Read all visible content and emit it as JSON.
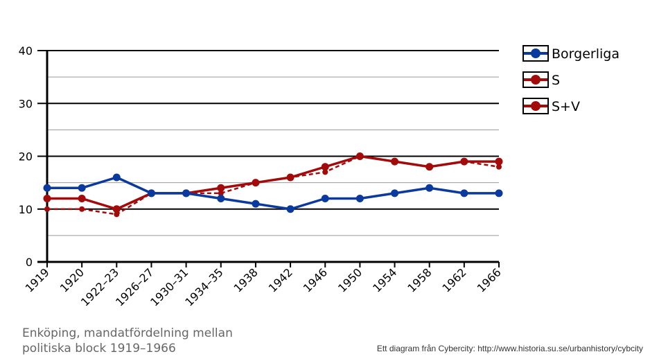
{
  "chart_data": {
    "type": "line",
    "categories": [
      "1919",
      "1920",
      "1922–23",
      "1926–27",
      "1930–31",
      "1934–35",
      "1938",
      "1942",
      "1946",
      "1950",
      "1954",
      "1958",
      "1962",
      "1966"
    ],
    "ylim": [
      0,
      40
    ],
    "yticks": [
      0,
      10,
      20,
      30,
      40
    ],
    "grid": true,
    "legend_position": "top-right",
    "series": [
      {
        "name": "Borgerliga",
        "color": "#0b3a9e",
        "style": "solid",
        "values": [
          14,
          14,
          16,
          13,
          13,
          12,
          11,
          10,
          12,
          12,
          13,
          14,
          13,
          13
        ]
      },
      {
        "name": "S",
        "color": "#a30a0a",
        "style": "dashed",
        "values": [
          10,
          10,
          9,
          13,
          13,
          13,
          15,
          16,
          17,
          20,
          19,
          18,
          19,
          18
        ]
      },
      {
        "name": "S+V",
        "color": "#a30a0a",
        "style": "solid",
        "values": [
          12,
          12,
          10,
          13,
          13,
          14,
          15,
          16,
          18,
          20,
          19,
          18,
          19,
          19
        ]
      }
    ]
  },
  "caption": {
    "line1": "Enköping, mandatfördelning  mellan",
    "line2": "politiska block 1919–1966"
  },
  "credit": "Ett diagram från Cybercity: http://www.historia.su.se/urbanhistory/cybcity"
}
